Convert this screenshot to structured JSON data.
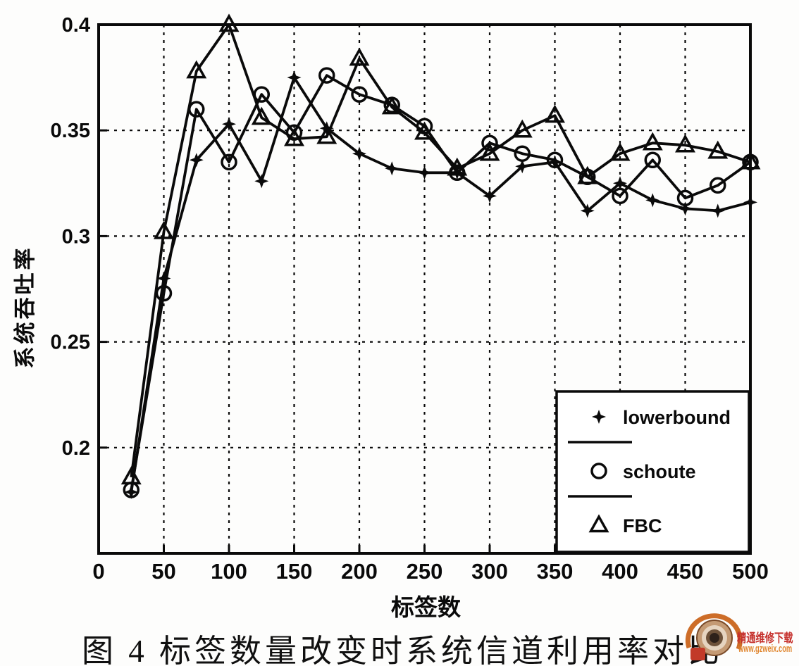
{
  "chart_data": {
    "type": "line",
    "title": "",
    "xlabel": "标签数",
    "ylabel": "系统吞吐率",
    "xlim": [
      0,
      500
    ],
    "ylim": [
      0.15,
      0.4
    ],
    "xticks": [
      0,
      50,
      100,
      150,
      200,
      250,
      300,
      350,
      400,
      450,
      500
    ],
    "yticks": [
      0.2,
      0.25,
      0.3,
      0.35,
      0.4
    ],
    "grid": true,
    "legend_position": "lower-right",
    "x": [
      25,
      50,
      75,
      100,
      125,
      150,
      175,
      200,
      225,
      250,
      275,
      300,
      325,
      350,
      375,
      400,
      425,
      450,
      475,
      500
    ],
    "series": [
      {
        "name": "lowerbound",
        "marker": "star",
        "values": [
          0.179,
          0.28,
          0.336,
          0.353,
          0.326,
          0.375,
          0.351,
          0.339,
          0.332,
          0.33,
          0.33,
          0.319,
          0.333,
          0.335,
          0.312,
          0.325,
          0.317,
          0.313,
          0.312,
          0.316
        ]
      },
      {
        "name": "schoute",
        "marker": "circle",
        "values": [
          0.18,
          0.273,
          0.36,
          0.335,
          0.367,
          0.349,
          0.376,
          0.367,
          0.362,
          0.352,
          0.33,
          0.344,
          0.339,
          0.336,
          0.328,
          0.319,
          0.336,
          0.318,
          0.324,
          0.335
        ]
      },
      {
        "name": "FBC",
        "marker": "triangle",
        "values": [
          0.186,
          0.302,
          0.378,
          0.4,
          0.356,
          0.346,
          0.347,
          0.384,
          0.361,
          0.349,
          0.332,
          0.339,
          0.35,
          0.357,
          0.328,
          0.339,
          0.344,
          0.343,
          0.34,
          0.335
        ]
      }
    ],
    "line_color": "#0a0a0a"
  },
  "caption": "图 4 标签数量改变时系统信道利用率对比",
  "watermark": {
    "line1": "精通维修下载",
    "line2": "www.gzweix.com",
    "color1": "#c5302c",
    "color2": "#e0862f"
  }
}
